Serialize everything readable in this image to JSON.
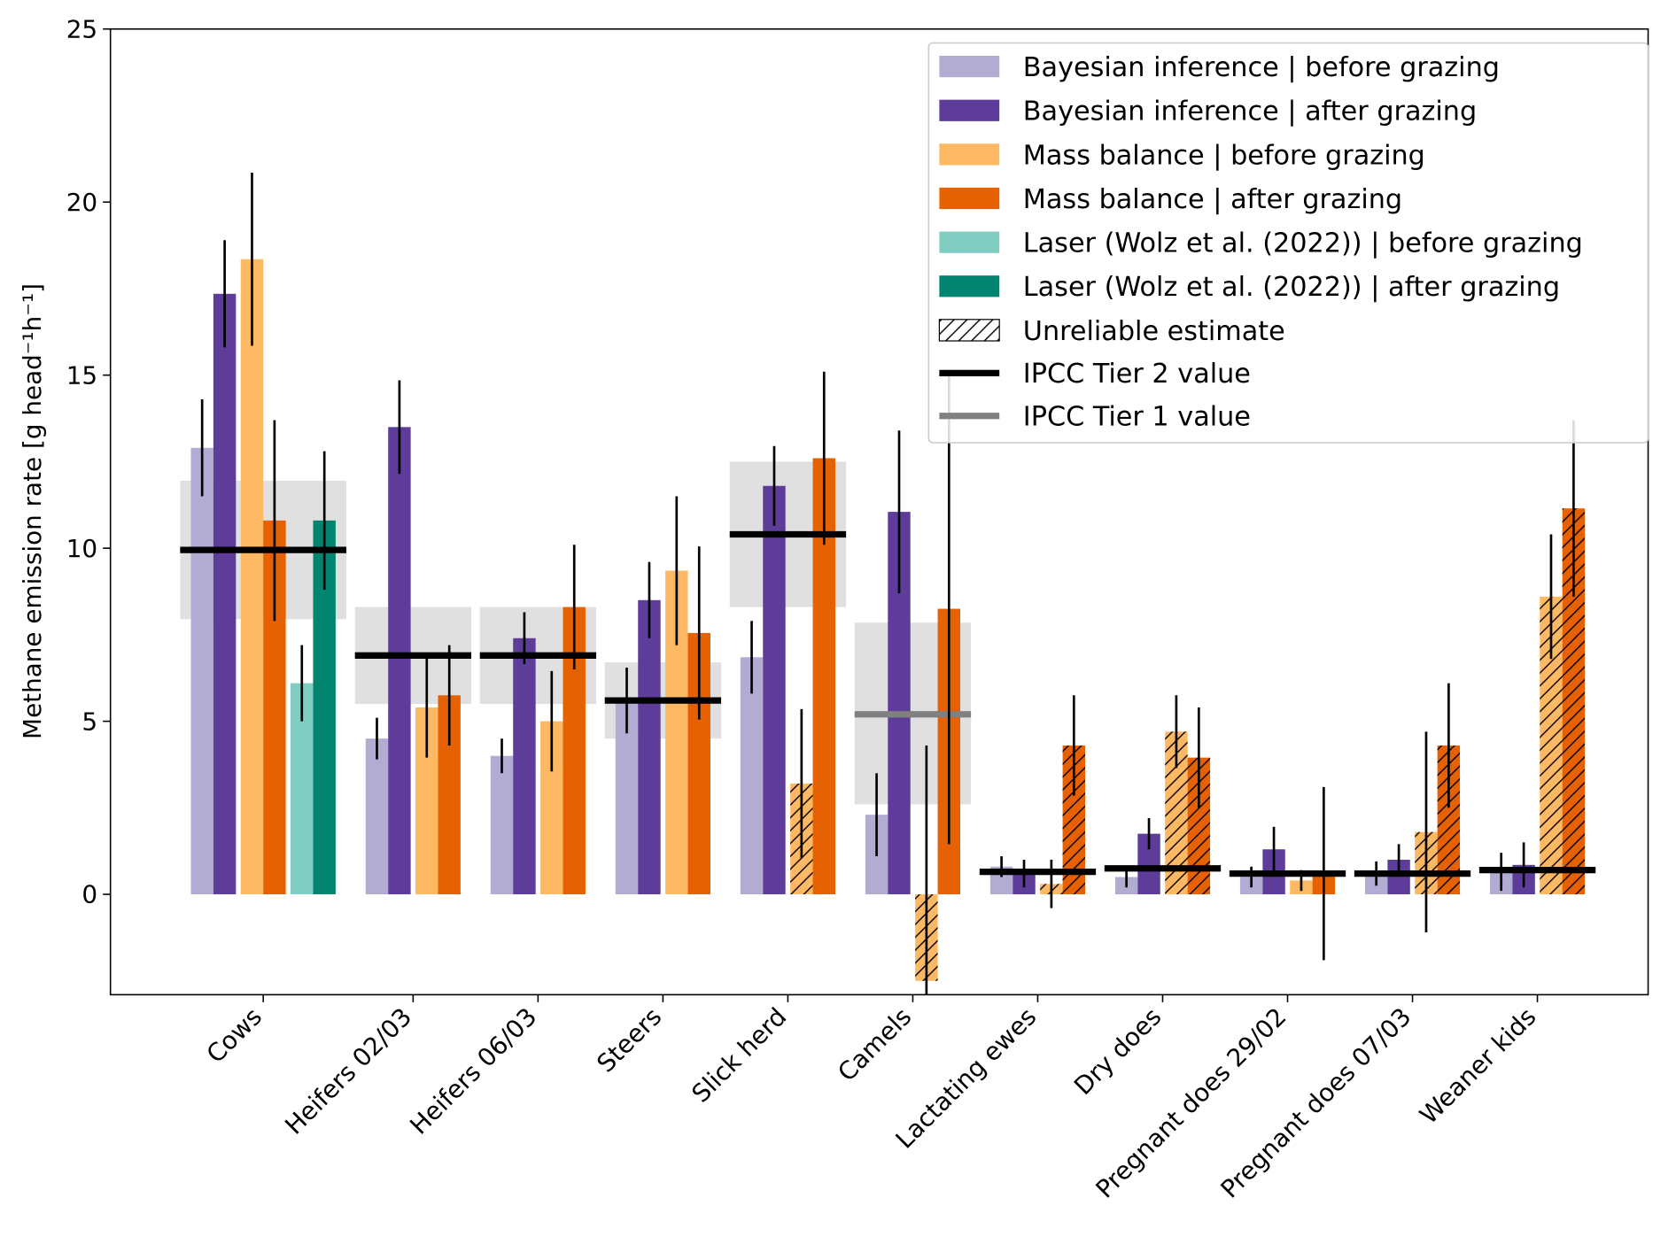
{
  "chart_data": {
    "type": "bar",
    "y_label": "Methane emission rate [g head⁻¹h⁻¹]",
    "categories": [
      "Cows",
      "Heifers 02/03",
      "Heifers 06/03",
      "Steers",
      "Slick herd",
      "Camels",
      "Lactating ewes",
      "Dry does",
      "Pregnant does 29/02",
      "Pregnant does 07/03",
      "Weaner kids"
    ],
    "series": [
      {
        "name": "Bayesian inference | before grazing",
        "color": "#b2abd2",
        "values": [
          12.9,
          4.5,
          4.0,
          5.6,
          6.85,
          2.3,
          0.8,
          0.5,
          0.5,
          0.6,
          0.65
        ],
        "errors": [
          1.4,
          0.6,
          0.5,
          0.95,
          1.05,
          1.2,
          0.3,
          0.3,
          0.3,
          0.35,
          0.55
        ],
        "unreliable": [
          false,
          false,
          false,
          false,
          false,
          false,
          false,
          false,
          false,
          false,
          false
        ]
      },
      {
        "name": "Bayesian inference | after grazing",
        "color": "#5e3c99",
        "values": [
          17.35,
          13.5,
          7.4,
          8.5,
          11.8,
          11.05,
          0.6,
          1.75,
          1.3,
          1.0,
          0.85
        ],
        "errors": [
          1.55,
          1.35,
          0.75,
          1.1,
          1.15,
          2.35,
          0.4,
          0.45,
          0.65,
          0.45,
          0.65
        ],
        "unreliable": [
          false,
          false,
          false,
          false,
          false,
          false,
          false,
          false,
          false,
          false,
          false
        ]
      },
      {
        "name": "Mass balance | before grazing",
        "color": "#fdb863",
        "values": [
          18.35,
          5.4,
          5.0,
          9.35,
          3.2,
          -2.5,
          0.3,
          4.7,
          0.4,
          1.8,
          8.6
        ],
        "errors": [
          2.5,
          1.45,
          1.45,
          2.15,
          2.15,
          6.8,
          0.7,
          1.05,
          0.3,
          2.9,
          1.8
        ],
        "unreliable": [
          false,
          false,
          false,
          false,
          true,
          true,
          true,
          true,
          false,
          true,
          true
        ]
      },
      {
        "name": "Mass balance | after grazing",
        "color": "#e66101",
        "values": [
          10.8,
          5.75,
          8.3,
          7.55,
          12.6,
          8.25,
          4.3,
          3.95,
          0.6,
          4.3,
          11.15
        ],
        "errors": [
          2.9,
          1.45,
          1.8,
          2.5,
          2.5,
          6.8,
          1.45,
          1.45,
          2.5,
          1.8,
          2.55
        ],
        "unreliable": [
          false,
          false,
          false,
          false,
          false,
          false,
          true,
          true,
          false,
          true,
          true
        ]
      },
      {
        "name": "Laser (Wolz et al. (2022)) | before grazing",
        "color": "#80cdc1",
        "values": [
          6.1,
          null,
          null,
          null,
          null,
          null,
          null,
          null,
          null,
          null,
          null
        ],
        "errors": [
          1.1,
          null,
          null,
          null,
          null,
          null,
          null,
          null,
          null,
          null,
          null
        ],
        "unreliable": [
          false,
          false,
          false,
          false,
          false,
          false,
          false,
          false,
          false,
          false,
          false
        ]
      },
      {
        "name": "Laser (Wolz et al. (2022)) | after grazing",
        "color": "#018571",
        "values": [
          10.8,
          null,
          null,
          null,
          null,
          null,
          null,
          null,
          null,
          null,
          null
        ],
        "errors": [
          2.0,
          null,
          null,
          null,
          null,
          null,
          null,
          null,
          null,
          null,
          null
        ],
        "unreliable": [
          false,
          false,
          false,
          false,
          false,
          false,
          false,
          false,
          false,
          false,
          false
        ]
      }
    ],
    "unreliable_label": "Unreliable estimate",
    "references": [
      {
        "name": "IPCC Tier 2 value",
        "color": "#000000",
        "values": [
          9.95,
          6.9,
          6.9,
          5.6,
          10.4,
          null,
          0.65,
          0.75,
          0.6,
          0.6,
          0.7
        ],
        "low": [
          7.95,
          5.5,
          5.5,
          4.5,
          8.3,
          null,
          null,
          null,
          null,
          null,
          null
        ],
        "high": [
          11.95,
          8.3,
          8.3,
          6.7,
          12.5,
          null,
          null,
          null,
          null,
          null,
          null
        ]
      },
      {
        "name": "IPCC Tier 1 value",
        "color": "#808080",
        "values": [
          null,
          null,
          null,
          null,
          null,
          5.2,
          null,
          null,
          null,
          null,
          null
        ],
        "low": [
          null,
          null,
          null,
          null,
          null,
          2.6,
          null,
          null,
          null,
          null,
          null
        ],
        "high": [
          null,
          null,
          null,
          null,
          null,
          7.85,
          null,
          null,
          null,
          null,
          null
        ]
      }
    ],
    "ylim": [
      -2.9,
      25
    ],
    "yticks": [
      0,
      5,
      10,
      15,
      20,
      25
    ],
    "legend": "upper right"
  }
}
